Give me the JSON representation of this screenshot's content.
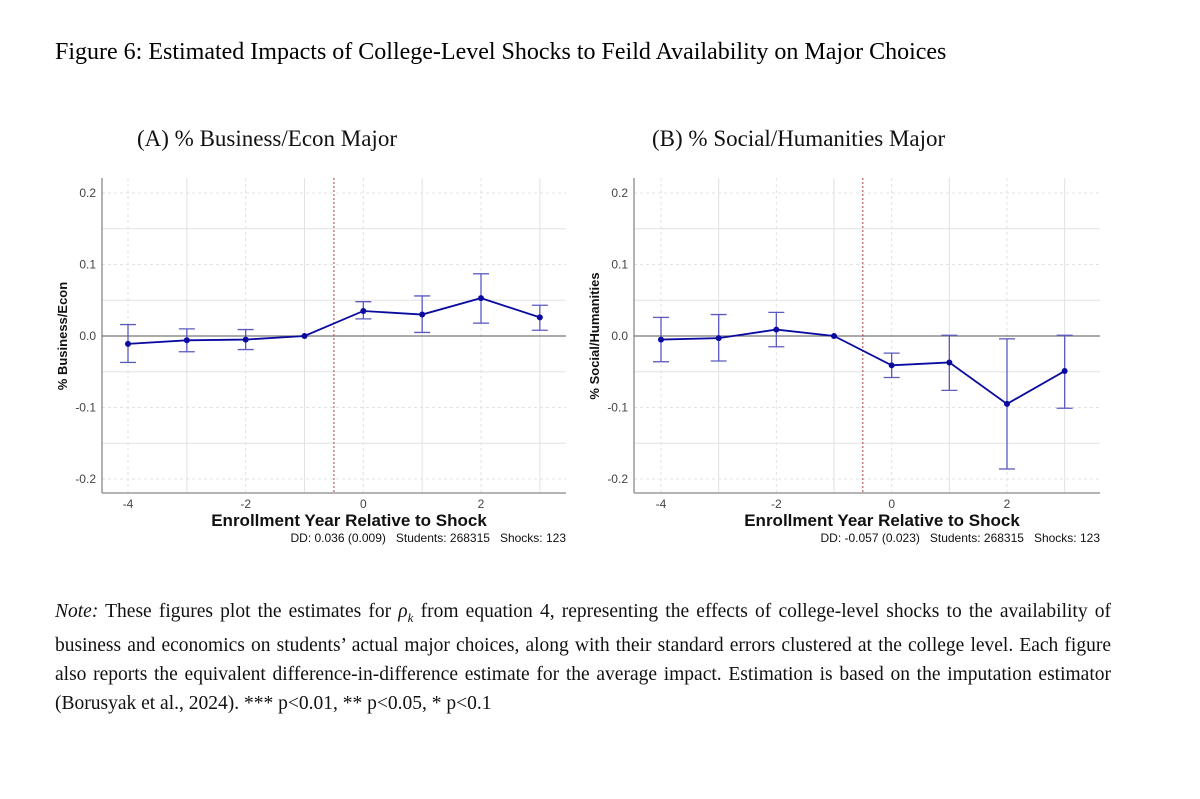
{
  "figure": {
    "title": "Figure 6:  Estimated Impacts of College-Level Shocks to Feild Availability on Major Choices"
  },
  "note": {
    "label": "Note:",
    "text_part1": " These figures plot the estimates for ",
    "symbol": "ρ",
    "symbol_sub": "k",
    "text_part2": " from equation 4, representing the effects of college-level shocks to the availability of business and economics on students’ actual major choices, along with their standard errors clustered at the college level.  Each figure also reports the equivalent difference-in-difference estimate for the average impact.  Estimation is based on the imputation estimator (Borusyak et al., 2024).  *** p<0.01, ** p<0.05, * p<0.1"
  },
  "colors": {
    "series": "#0a0aa0",
    "errorbar": "#5a5ac0",
    "event_line": "#b04040",
    "zero_line": "#777777",
    "grid": "#e2e2e2",
    "axis": "#888888",
    "tick_text": "#444444"
  },
  "chart_data": [
    {
      "type": "line",
      "panel_title": "(A) % Business/Econ Major",
      "xlabel": "Enrollment Year Relative to Shock",
      "ylabel": "% Business/Econ",
      "footer": "DD: 0.036 (0.009)   Students: 268315   Shocks: 123",
      "x": [
        -4,
        -3,
        -2,
        -1,
        0,
        1,
        2,
        3
      ],
      "y": [
        -0.011,
        -0.006,
        -0.005,
        0.0,
        0.035,
        0.03,
        0.053,
        0.026
      ],
      "ci_low": [
        -0.037,
        -0.022,
        -0.019,
        0.0,
        0.024,
        0.005,
        0.018,
        0.008
      ],
      "ci_high": [
        0.016,
        0.01,
        0.009,
        0.0,
        0.048,
        0.056,
        0.087,
        0.043
      ],
      "xlim": [
        -4.6,
        3.5
      ],
      "ylim": [
        -0.22,
        0.22
      ],
      "xticks": [
        -4,
        -2,
        0,
        2
      ],
      "xtick_labels": [
        "-4",
        "-2",
        "0",
        "2"
      ],
      "yticks": [
        -0.2,
        -0.1,
        0.0,
        0.1,
        0.2
      ],
      "ytick_labels": [
        "-0.2",
        "-0.1",
        "0.0",
        "0.1",
        "0.2"
      ],
      "event_line_x": -0.5,
      "grid": true
    },
    {
      "type": "line",
      "panel_title": "(B) % Social/Humanities Major",
      "xlabel": "Enrollment Year Relative to Shock",
      "ylabel": "% Social/Humanities",
      "footer": "DD: -0.057 (0.023)   Students: 268315   Shocks: 123",
      "x": [
        -4,
        -3,
        -2,
        -1,
        0,
        1,
        2,
        3
      ],
      "y": [
        -0.005,
        -0.003,
        0.009,
        0.0,
        -0.041,
        -0.037,
        -0.095,
        -0.049
      ],
      "ci_low": [
        -0.036,
        -0.035,
        -0.015,
        0.0,
        -0.058,
        -0.076,
        -0.186,
        -0.101
      ],
      "ci_high": [
        0.026,
        0.03,
        0.033,
        0.0,
        -0.024,
        0.001,
        -0.004,
        0.001
      ],
      "xlim": [
        -4.6,
        3.5
      ],
      "ylim": [
        -0.22,
        0.22
      ],
      "xticks": [
        -4,
        -2,
        0,
        2
      ],
      "xtick_labels": [
        "-4",
        "-2",
        "0",
        "2"
      ],
      "yticks": [
        -0.2,
        -0.1,
        0.0,
        0.1,
        0.2
      ],
      "ytick_labels": [
        "-0.2",
        "-0.1",
        "0.0",
        "0.1",
        "0.2"
      ],
      "event_line_x": -0.5,
      "grid": true
    }
  ]
}
